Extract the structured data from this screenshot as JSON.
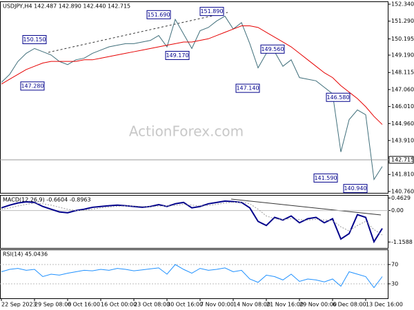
{
  "chart_data": [
    {
      "type": "line",
      "title": "USDJPY,H4 142.487 142.890 142.440 142.715",
      "watermark": "ActionForex.com",
      "categories": [
        "22 Sep 2023",
        null,
        null,
        null,
        "29 Sep 08:00",
        null,
        null,
        null,
        "6 Oct 16:00",
        null,
        null,
        null,
        "16 Oct 00:00",
        null,
        null,
        null,
        "23 Oct 08:00",
        null,
        null,
        null,
        "30 Oct 16:00",
        null,
        null,
        null,
        "7 Nov 00:00",
        null,
        null,
        null,
        "14 Nov 08:00",
        null,
        null,
        null,
        "21 Nov 16:00",
        null,
        null,
        null,
        "29 Nov 00:00",
        null,
        null,
        null,
        "6 Dec 08:00",
        null,
        null,
        null,
        "13 Dec 16:00",
        null,
        null
      ],
      "series": [
        {
          "color": "#3f6e7a",
          "values": [
            147.5,
            148.0,
            148.8,
            149.3,
            149.6,
            149.4,
            149.2,
            148.8,
            148.6,
            148.9,
            149.0,
            149.3,
            149.5,
            149.7,
            149.8,
            149.9,
            149.9,
            150.0,
            150.1,
            150.4,
            149.7,
            151.4,
            150.5,
            149.6,
            150.7,
            150.9,
            151.3,
            151.6,
            150.8,
            151.2,
            149.9,
            148.4,
            149.3,
            149.4,
            148.5,
            148.9,
            147.8,
            147.7,
            147.6,
            147.2,
            146.8,
            143.2,
            145.2,
            145.8,
            145.5,
            141.5,
            142.3
          ]
        },
        {
          "color": "#e60000",
          "values": [
            147.4,
            147.7,
            148.0,
            148.3,
            148.5,
            148.7,
            148.8,
            148.8,
            148.8,
            148.8,
            148.9,
            148.9,
            149.0,
            149.1,
            149.2,
            149.3,
            149.4,
            149.5,
            149.6,
            149.7,
            149.8,
            149.9,
            150.0,
            150.0,
            150.1,
            150.2,
            150.4,
            150.6,
            150.8,
            151.0,
            151.0,
            150.9,
            150.6,
            150.3,
            150.0,
            149.7,
            149.3,
            148.9,
            148.5,
            148.1,
            147.8,
            147.3,
            146.9,
            146.5,
            146.0,
            145.4,
            144.9
          ]
        }
      ],
      "ylim": [
        140.67,
        152.47
      ],
      "yticks": [
        {
          "value": 152.34,
          "label": "152.340"
        },
        {
          "value": 151.29,
          "label": "151.290"
        },
        150.195,
        {
          "value": 149.19,
          "label": "149.190"
        },
        148.115,
        {
          "value": 147.06,
          "label": "147.060"
        },
        {
          "value": 146.01,
          "label": "146.010"
        },
        {
          "value": 144.96,
          "label": "144.960"
        },
        {
          "value": 143.91,
          "label": "143.910"
        },
        {
          "value": 141.81,
          "label": "141.810"
        },
        {
          "value": 140.76,
          "label": "140.760"
        }
      ],
      "current_price": 142.715,
      "annotations": [
        {
          "value": 150.15,
          "label": "150.150"
        },
        {
          "value": 147.28,
          "label": "147.280"
        },
        {
          "value": 151.69,
          "label": "151.690"
        },
        {
          "value": 149.17,
          "label": "149.170"
        },
        {
          "value": 151.89,
          "label": "151.890"
        },
        {
          "value": 149.56,
          "label": "149.560"
        },
        {
          "value": 147.14,
          "label": "147.140"
        },
        {
          "value": 146.58,
          "label": "146.580"
        },
        {
          "value": 141.59,
          "label": "141.590"
        },
        {
          "value": 140.94,
          "label": "140.940"
        }
      ]
    },
    {
      "type": "line",
      "title": "MACD(12,26,9) -0.6604 -0.8963",
      "series": [
        {
          "color": "#00008b",
          "values": [
            0.1,
            0.2,
            0.28,
            0.32,
            0.3,
            0.15,
            0.05,
            -0.05,
            -0.08,
            0.0,
            0.05,
            0.12,
            0.15,
            0.18,
            0.2,
            0.18,
            0.15,
            0.12,
            0.15,
            0.22,
            0.15,
            0.25,
            0.3,
            0.1,
            0.15,
            0.25,
            0.3,
            0.35,
            0.33,
            0.3,
            0.1,
            -0.4,
            -0.55,
            -0.25,
            -0.35,
            -0.2,
            -0.45,
            -0.3,
            -0.25,
            -0.45,
            -0.3,
            -1.05,
            -0.85,
            -0.15,
            -0.25,
            -1.15,
            -0.66
          ]
        },
        {
          "color": "#999999",
          "values": [
            0.05,
            0.1,
            0.17,
            0.23,
            0.27,
            0.25,
            0.2,
            0.12,
            0.05,
            0.0,
            0.01,
            0.05,
            0.1,
            0.13,
            0.16,
            0.17,
            0.17,
            0.15,
            0.14,
            0.17,
            0.17,
            0.19,
            0.23,
            0.2,
            0.17,
            0.19,
            0.23,
            0.28,
            0.31,
            0.31,
            0.25,
            0.05,
            -0.2,
            -0.3,
            -0.33,
            -0.3,
            -0.33,
            -0.35,
            -0.32,
            -0.35,
            -0.36,
            -0.6,
            -0.75,
            -0.55,
            -0.4,
            -0.7,
            -0.9
          ]
        }
      ],
      "ylim": [
        -1.38,
        0.55
      ],
      "yticks": [
        0.4629,
        {
          "value": 0,
          "label": "0.00"
        },
        -1.1588
      ]
    },
    {
      "type": "line",
      "title": "RSI(14) 45.0436",
      "series": [
        {
          "color": "#1e90ff",
          "values": [
            55,
            60,
            62,
            58,
            60,
            45,
            50,
            48,
            52,
            55,
            58,
            57,
            60,
            58,
            62,
            60,
            57,
            59,
            61,
            63,
            50,
            70,
            60,
            52,
            62,
            58,
            60,
            63,
            55,
            58,
            40,
            33,
            48,
            45,
            38,
            50,
            35,
            40,
            38,
            34,
            40,
            25,
            55,
            50,
            45,
            22,
            45
          ]
        }
      ],
      "ylim": [
        0,
        100
      ],
      "yticks": [
        70,
        30
      ]
    }
  ]
}
